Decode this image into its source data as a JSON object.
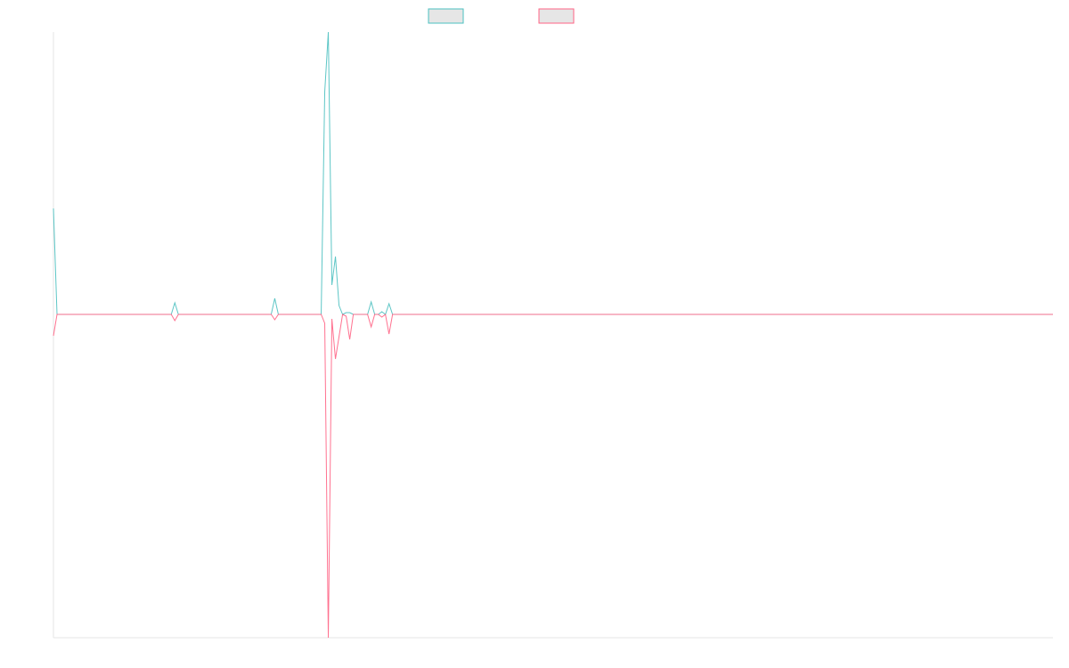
{
  "chart_data": {
    "type": "line",
    "ylim": [
      -363,
      317
    ],
    "series": [
      {
        "color": "#4bc0c0",
        "values": [
          119,
          0,
          0,
          0,
          0,
          0,
          0,
          0,
          0,
          0,
          0,
          0,
          0,
          0,
          0,
          0,
          0,
          0,
          0,
          0,
          0,
          0,
          0,
          0,
          0,
          0,
          0,
          0,
          0,
          0,
          0,
          0,
          0,
          0,
          13,
          0,
          0,
          0,
          0,
          0,
          0,
          0,
          0,
          0,
          0,
          0,
          0,
          0,
          0,
          0,
          0,
          0,
          0,
          0,
          0,
          0,
          0,
          0,
          0,
          0,
          0,
          0,
          18,
          0,
          0,
          0,
          0,
          0,
          0,
          0,
          0,
          0,
          0,
          0,
          0,
          0,
          250,
          317,
          33,
          65,
          10,
          0,
          2,
          2,
          0,
          0,
          0,
          0,
          0,
          14,
          0,
          0,
          3,
          0,
          12,
          0,
          0,
          0,
          0,
          0,
          0,
          0,
          0,
          0,
          0,
          0,
          0,
          0,
          0,
          0,
          0,
          0,
          0,
          0,
          0,
          0,
          0,
          0,
          0,
          0,
          0,
          0,
          0,
          0,
          0,
          0,
          0,
          0,
          0,
          0,
          0,
          0,
          0,
          0,
          0,
          0,
          0,
          0,
          0,
          0,
          0,
          0,
          0,
          0,
          0,
          0,
          0,
          0,
          0,
          0,
          0,
          0,
          0,
          0,
          0,
          0,
          0,
          0,
          0,
          0,
          0,
          0,
          0,
          0,
          0,
          0,
          0,
          0,
          0,
          0,
          0,
          0,
          0,
          0,
          0,
          0,
          0,
          0,
          0,
          0,
          0,
          0,
          0,
          0,
          0,
          0,
          0,
          0,
          0,
          0,
          0,
          0,
          0,
          0,
          0,
          0,
          0,
          0,
          0,
          0,
          0,
          0,
          0,
          0,
          0,
          0,
          0,
          0,
          0,
          0,
          0,
          0,
          0,
          0,
          0,
          0,
          0,
          0,
          0,
          0,
          0,
          0,
          0,
          0,
          0,
          0,
          0,
          0,
          0,
          0,
          0,
          0,
          0,
          0,
          0,
          0,
          0,
          0,
          0,
          0,
          0,
          0,
          0,
          0,
          0,
          0,
          0,
          0,
          0,
          0,
          0,
          0,
          0,
          0,
          0,
          0,
          0,
          0,
          0,
          0,
          0,
          0,
          0,
          0,
          0,
          0,
          0,
          0,
          0,
          0,
          0,
          0,
          0,
          0,
          0,
          0,
          0,
          0,
          0,
          0,
          0
        ]
      },
      {
        "color": "#ff6384",
        "values": [
          -24,
          0,
          0,
          0,
          0,
          0,
          0,
          0,
          0,
          0,
          0,
          0,
          0,
          0,
          0,
          0,
          0,
          0,
          0,
          0,
          0,
          0,
          0,
          0,
          0,
          0,
          0,
          0,
          0,
          0,
          0,
          0,
          0,
          0,
          -7,
          0,
          0,
          0,
          0,
          0,
          0,
          0,
          0,
          0,
          0,
          0,
          0,
          0,
          0,
          0,
          0,
          0,
          0,
          0,
          0,
          0,
          0,
          0,
          0,
          0,
          0,
          0,
          -6,
          0,
          0,
          0,
          0,
          0,
          0,
          0,
          0,
          0,
          0,
          0,
          0,
          0,
          -10,
          -363,
          -5,
          -50,
          -25,
          0,
          -2,
          -28,
          0,
          0,
          0,
          0,
          0,
          -14,
          0,
          0,
          -3,
          0,
          -22,
          0,
          0,
          0,
          0,
          0,
          0,
          0,
          0,
          0,
          0,
          0,
          0,
          0,
          0,
          0,
          0,
          0,
          0,
          0,
          0,
          0,
          0,
          0,
          0,
          0,
          0,
          0,
          0,
          0,
          0,
          0,
          0,
          0,
          0,
          0,
          0,
          0,
          0,
          0,
          0,
          0,
          0,
          0,
          0,
          0,
          0,
          0,
          0,
          0,
          0,
          0,
          0,
          0,
          0,
          0,
          0,
          0,
          0,
          0,
          0,
          0,
          0,
          0,
          0,
          0,
          0,
          0,
          0,
          0,
          0,
          0,
          0,
          0,
          0,
          0,
          0,
          0,
          0,
          0,
          0,
          0,
          0,
          0,
          0,
          0,
          0,
          0,
          0,
          0,
          0,
          0,
          0,
          0,
          0,
          0,
          0,
          0,
          0,
          0,
          0,
          0,
          0,
          0,
          0,
          0,
          0,
          0,
          0,
          0,
          0,
          0,
          0,
          0,
          0,
          0,
          0,
          0,
          0,
          0,
          0,
          0,
          0,
          0,
          0,
          0,
          0,
          0,
          0,
          0,
          0,
          0,
          0,
          0,
          0,
          0,
          0,
          0,
          0,
          0,
          0,
          0,
          0,
          0,
          0,
          0,
          0,
          0,
          0,
          0,
          0,
          0,
          0,
          0,
          0,
          0,
          0,
          0,
          0,
          0,
          0,
          0,
          0,
          0,
          0,
          0,
          0,
          0,
          0,
          0,
          0,
          0,
          0,
          0,
          0,
          0,
          0,
          0,
          0,
          0,
          0,
          0,
          0,
          0,
          0,
          0,
          0
        ]
      }
    ]
  }
}
